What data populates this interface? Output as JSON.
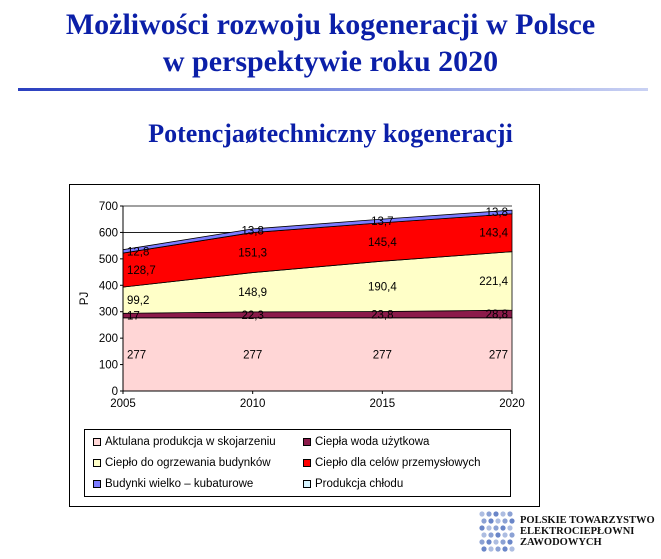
{
  "slide": {
    "title_line1": "Możliwości rozwoju kogeneracji w Polsce",
    "title_line2": "w perspektywie roku 2020",
    "subtitle": "Potencjaøtechniczny kogeneracji"
  },
  "chart_data": {
    "type": "area",
    "stacked": true,
    "x": [
      2005,
      2010,
      2015,
      2020
    ],
    "ylabel": "PJ",
    "ylim": [
      0,
      700
    ],
    "yticks": [
      0,
      100,
      200,
      300,
      400,
      500,
      600,
      700
    ],
    "grid": "horizontal",
    "legend_position": "bottom",
    "series": [
      {
        "name": "Aktulana produkcja w skojarzeniu",
        "color": "#ffd6d6",
        "values": [
          277,
          277,
          277,
          277
        ],
        "labels": [
          "277",
          "277",
          "277",
          "277"
        ]
      },
      {
        "name": "Ciepła woda użytkowa",
        "color": "#8b1a4a",
        "values": [
          17,
          22.3,
          23.8,
          28.8
        ],
        "labels": [
          "17",
          "22,3",
          "23,8",
          "28,8"
        ]
      },
      {
        "name": "Ciepło do ogrzewania budynków",
        "color": "#ffffc8",
        "values": [
          99.2,
          148.9,
          190.4,
          221.4
        ],
        "labels": [
          "99,2",
          "148,9",
          "190,4",
          "221,4"
        ]
      },
      {
        "name": "Ciepło dla celów przemysłowych",
        "color": "#ff0000",
        "values": [
          128.7,
          151.3,
          145.4,
          143.4
        ],
        "labels": [
          "128,7",
          "151,3",
          "145,4",
          "143,4"
        ]
      },
      {
        "name": "Budynki wielko – kubaturowe",
        "color": "#7b7bff",
        "values": [
          12.8,
          13.8,
          13.7,
          13.8
        ],
        "labels": [
          "12,8",
          "13,8",
          "13,7",
          "13,8"
        ]
      },
      {
        "name": "Produkcja chłodu",
        "color": "#d6f4ff",
        "values": [
          0,
          0,
          0,
          0
        ],
        "labels": []
      }
    ]
  },
  "logo": {
    "line1": "POLSKIE TOWARZYSTWO",
    "line2": "ELEKTROCIEPŁOWNI",
    "line3": "ZAWODOWYCH",
    "color": "#6a86c8"
  }
}
